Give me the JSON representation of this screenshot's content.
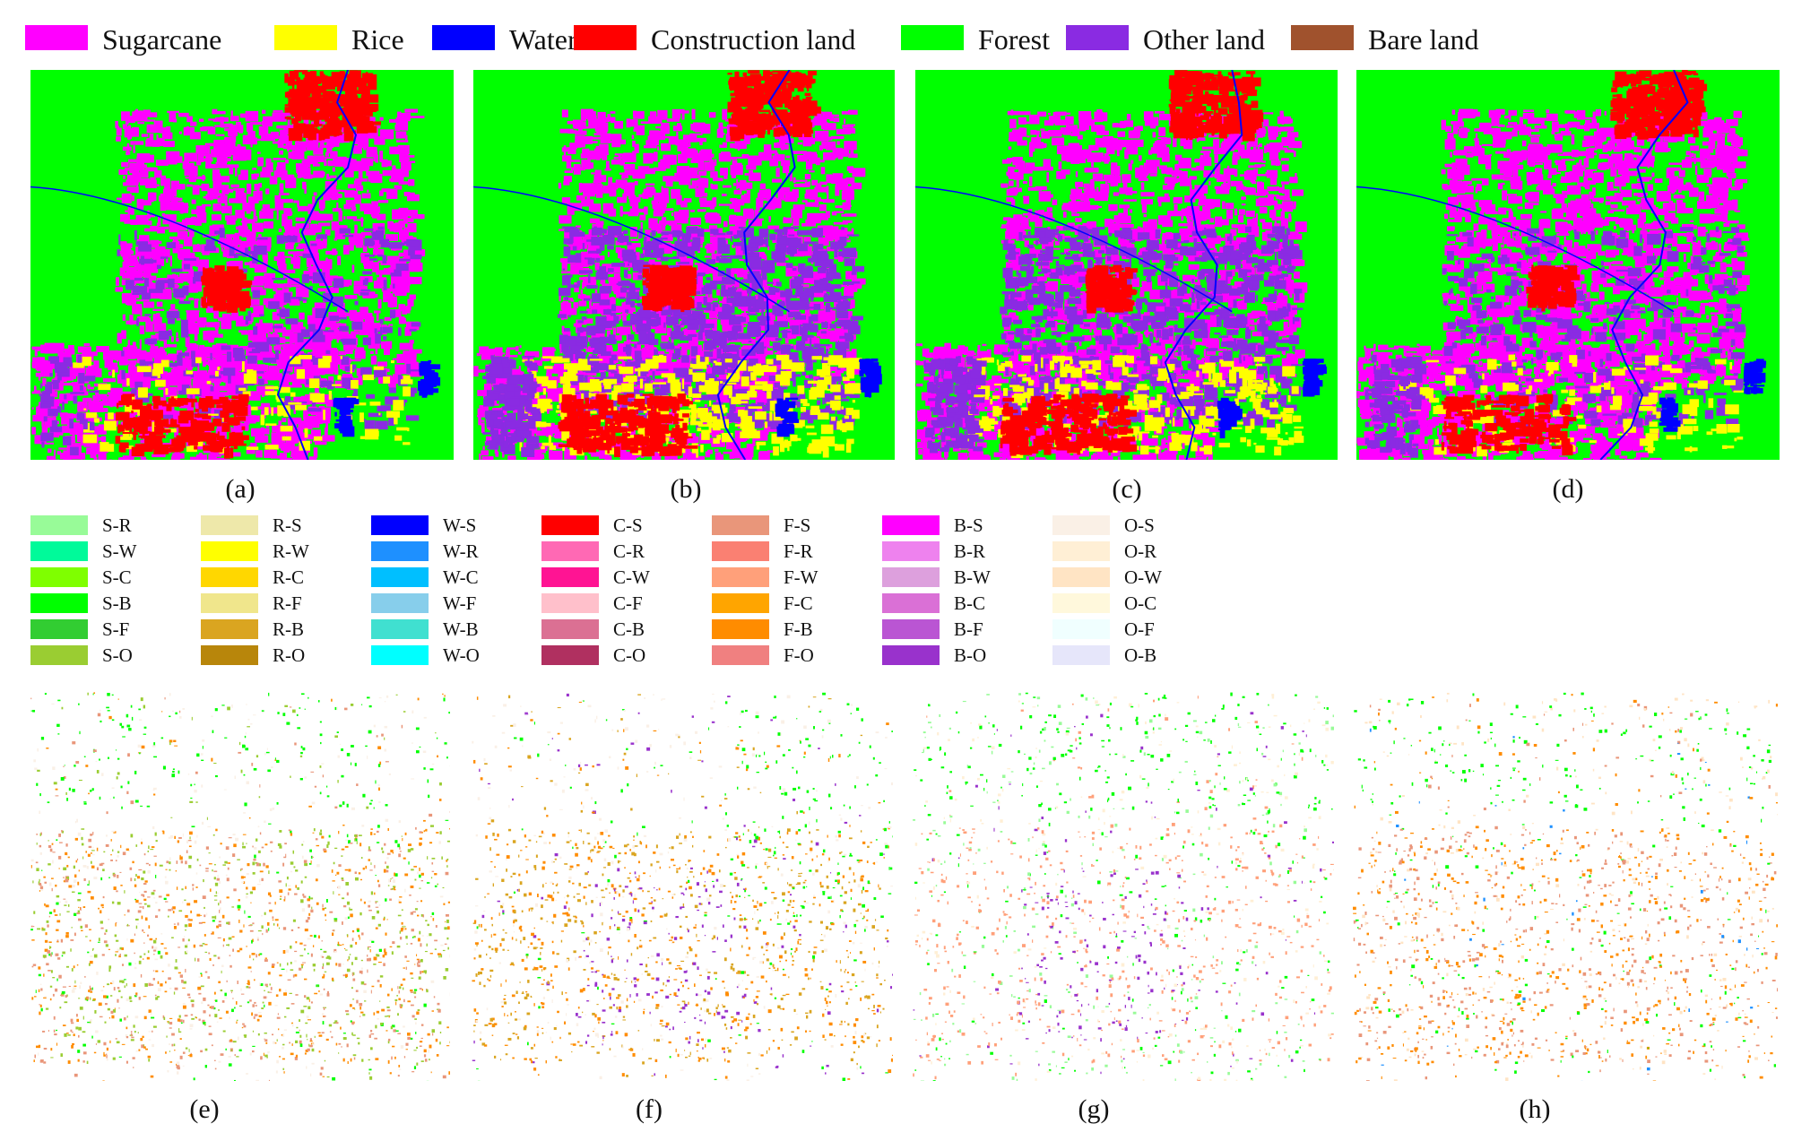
{
  "class_legend": [
    {
      "label": "Sugarcane",
      "color": "#ff00ff"
    },
    {
      "label": "Rice",
      "color": "#ffff00"
    },
    {
      "label": "Water",
      "color": "#0000ff"
    },
    {
      "label": "Construction land",
      "color": "#ff0000"
    },
    {
      "label": "Forest",
      "color": "#00ff00"
    },
    {
      "label": "Other land",
      "color": "#8a2be2"
    },
    {
      "label": "Bare land",
      "color": "#a0522d"
    }
  ],
  "top_panels": [
    {
      "caption": "(a)"
    },
    {
      "caption": "(b)"
    },
    {
      "caption": "(c)"
    },
    {
      "caption": "(d)"
    }
  ],
  "transition_legend": [
    [
      {
        "label": "S-R",
        "color": "#98fb98"
      },
      {
        "label": "S-W",
        "color": "#00fa9a"
      },
      {
        "label": "S-C",
        "color": "#7fff00"
      },
      {
        "label": "S-B",
        "color": "#00ff00"
      },
      {
        "label": "S-F",
        "color": "#32cd32"
      },
      {
        "label": "S-O",
        "color": "#9acd32"
      }
    ],
    [
      {
        "label": "R-S",
        "color": "#eee8aa"
      },
      {
        "label": "R-W",
        "color": "#ffff00"
      },
      {
        "label": "R-C",
        "color": "#ffd700"
      },
      {
        "label": "R-F",
        "color": "#f0e68c"
      },
      {
        "label": "R-B",
        "color": "#daa520"
      },
      {
        "label": "R-O",
        "color": "#b8860b"
      }
    ],
    [
      {
        "label": "W-S",
        "color": "#0000ff"
      },
      {
        "label": "W-R",
        "color": "#1e90ff"
      },
      {
        "label": "W-C",
        "color": "#00bfff"
      },
      {
        "label": "W-F",
        "color": "#87ceeb"
      },
      {
        "label": "W-B",
        "color": "#40e0d0"
      },
      {
        "label": "W-O",
        "color": "#00ffff"
      }
    ],
    [
      {
        "label": "C-S",
        "color": "#ff0000"
      },
      {
        "label": "C-R",
        "color": "#ff69b4"
      },
      {
        "label": "C-W",
        "color": "#ff1493"
      },
      {
        "label": "C-F",
        "color": "#ffc0cb"
      },
      {
        "label": "C-B",
        "color": "#db7093"
      },
      {
        "label": "C-O",
        "color": "#b03060"
      }
    ],
    [
      {
        "label": "F-S",
        "color": "#e9967a"
      },
      {
        "label": "F-R",
        "color": "#fa8072"
      },
      {
        "label": "F-W",
        "color": "#ffa07a"
      },
      {
        "label": "F-C",
        "color": "#ffa500"
      },
      {
        "label": "F-B",
        "color": "#ff8c00"
      },
      {
        "label": "F-O",
        "color": "#f08080"
      }
    ],
    [
      {
        "label": "B-S",
        "color": "#ff00ff"
      },
      {
        "label": "B-R",
        "color": "#ee82ee"
      },
      {
        "label": "B-W",
        "color": "#dda0dd"
      },
      {
        "label": "B-C",
        "color": "#da70d6"
      },
      {
        "label": "B-F",
        "color": "#ba55d3"
      },
      {
        "label": "B-O",
        "color": "#9932cc"
      }
    ],
    [
      {
        "label": "O-S",
        "color": "#faf0e6"
      },
      {
        "label": "O-R",
        "color": "#ffefd5"
      },
      {
        "label": "O-W",
        "color": "#ffe4c4"
      },
      {
        "label": "O-C",
        "color": "#fff8dc"
      },
      {
        "label": "O-F",
        "color": "#f0ffff"
      },
      {
        "label": "O-B",
        "color": "#e6e6fa"
      }
    ]
  ],
  "bottom_panels": [
    {
      "caption": "(e)"
    },
    {
      "caption": "(f)"
    },
    {
      "caption": "(g)"
    },
    {
      "caption": "(h)"
    }
  ]
}
